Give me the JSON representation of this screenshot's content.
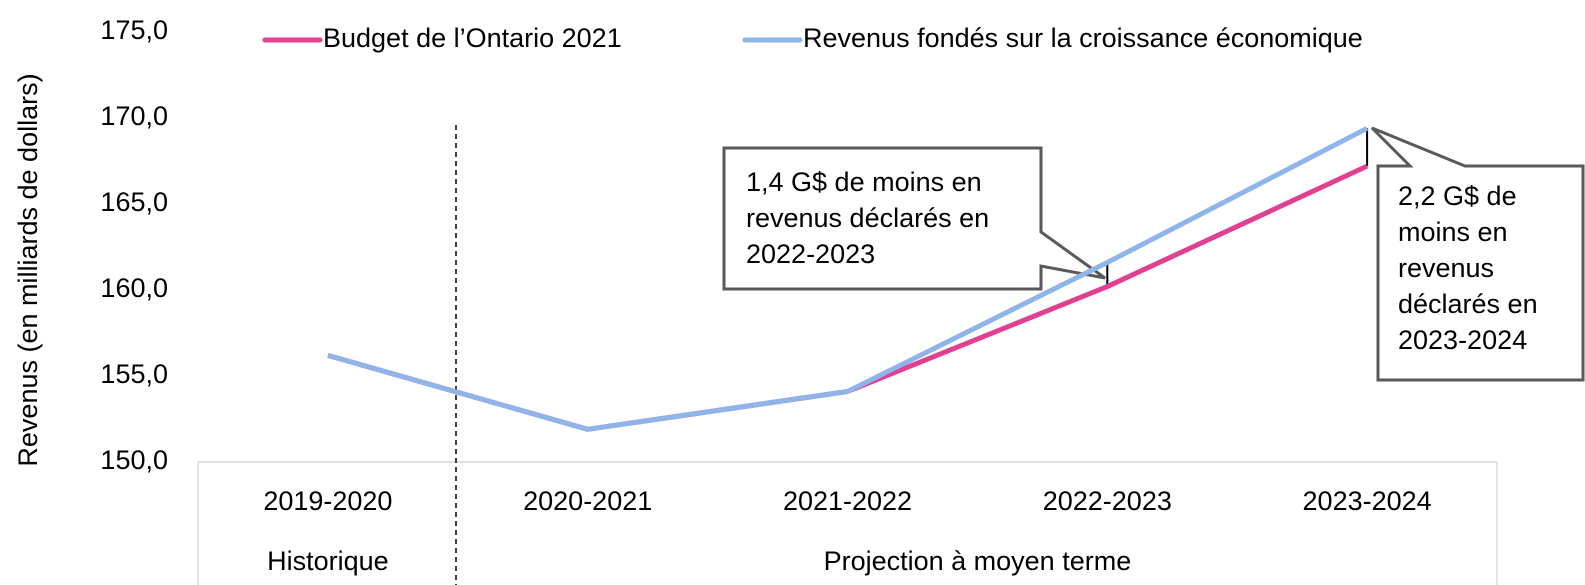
{
  "chart_data": {
    "type": "line",
    "y_label": "Revenus (en milliards de dollars)",
    "categories": [
      "2019-2020",
      "2020-2021",
      "2021-2022",
      "2022-2023",
      "2023-2024"
    ],
    "groups": [
      {
        "label": "Historique",
        "span": 1
      },
      {
        "label": "Projection à moyen terme",
        "span": 4
      }
    ],
    "series": [
      {
        "name": "Budget de l’Ontario 2021",
        "color": "#e0408f",
        "values": [
          156.2,
          151.9,
          154.1,
          160.2,
          167.2
        ]
      },
      {
        "name": "Revenus fondés sur la croissance économique",
        "color": "#8fb4ea",
        "values": [
          156.2,
          151.9,
          154.1,
          161.6,
          169.4
        ]
      }
    ],
    "ylim": [
      150,
      175
    ],
    "yticks": [
      {
        "value": 150,
        "label": "150,0"
      },
      {
        "value": 155,
        "label": "155,0"
      },
      {
        "value": 160,
        "label": "160,0"
      },
      {
        "value": 165,
        "label": "165,0"
      },
      {
        "value": 170,
        "label": "170,0"
      },
      {
        "value": 175,
        "label": "175,0"
      }
    ],
    "annotations": [
      {
        "lines": [
          "1,4 G$ de moins en",
          "revenus déclarés en",
          "2022-2023"
        ]
      },
      {
        "lines": [
          "2,2 G$ de",
          "moins en",
          "revenus",
          "déclarés en",
          "2023-2024"
        ]
      }
    ]
  }
}
